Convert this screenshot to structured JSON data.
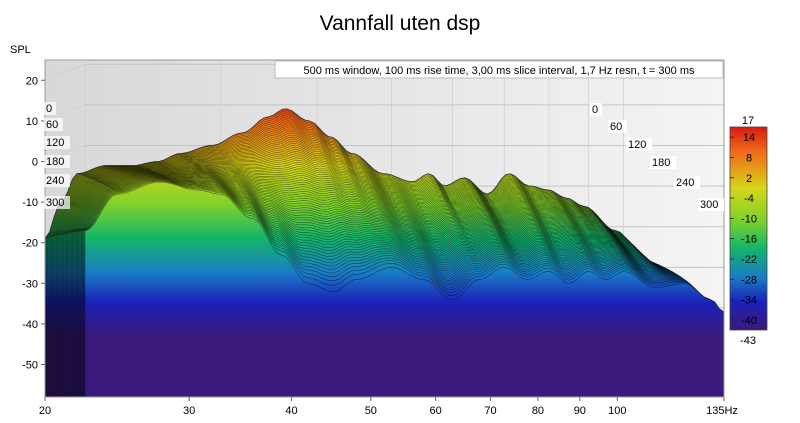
{
  "chart_data": {
    "type": "area",
    "title": "Vannfall uten dsp",
    "ylabel": "SPL",
    "x_unit": "Hz",
    "info": "500 ms window, 100 ms rise time, 3,00 ms slice interval, 1,7 Hz resn, t = 300 ms",
    "x_scale": "log",
    "xlim": [
      20,
      135
    ],
    "ylim": [
      -58,
      25
    ],
    "x_ticks": [
      "20",
      "30",
      "40",
      "50",
      "60",
      "70",
      "80",
      "90",
      "100",
      "135"
    ],
    "x_tick_values": [
      20,
      30,
      40,
      50,
      60,
      70,
      80,
      90,
      100,
      135
    ],
    "y_ticks": [
      "20",
      "10",
      "0",
      "-10",
      "-20",
      "-30",
      "-40",
      "-50"
    ],
    "y_tick_values": [
      20,
      10,
      0,
      -10,
      -20,
      -30,
      -40,
      -50
    ],
    "time_labels_left": [
      "0",
      "60",
      "120",
      "180",
      "240",
      "300"
    ],
    "time_labels_right": [
      "0",
      "60",
      "120",
      "180",
      "240",
      "300"
    ],
    "time_values_ms": [
      0,
      60,
      120,
      180,
      240,
      300
    ],
    "colorbar": {
      "top_label": "17",
      "bottom_label": "-43",
      "ticks": [
        "14",
        "8",
        "2",
        "-4",
        "-10",
        "-16",
        "-22",
        "-28",
        "-34",
        "-40"
      ],
      "tick_values": [
        14,
        8,
        2,
        -4,
        -10,
        -16,
        -22,
        -28,
        -34,
        -40
      ],
      "range": [
        -43,
        17
      ]
    },
    "series": [
      {
        "time_ms": 0,
        "x": [
          20,
          21,
          22,
          24,
          26,
          28,
          30,
          33,
          36,
          39,
          41,
          44,
          47,
          50,
          55,
          60,
          63,
          66,
          70,
          75,
          80,
          85,
          90,
          95,
          100,
          110,
          120,
          130,
          135
        ],
        "y": [
          -19,
          -10,
          -3,
          -1,
          -1,
          0,
          2,
          4,
          7,
          11,
          13,
          10,
          6,
          2,
          -3,
          -5,
          -3,
          -6,
          -4,
          -8,
          -3,
          -6,
          -7,
          -9,
          -11,
          -17,
          -24,
          -33,
          -40
        ]
      },
      {
        "time_ms": 300,
        "x": [
          20,
          22,
          25,
          28,
          30,
          33,
          36,
          39,
          42,
          45,
          50,
          55,
          60,
          65,
          70,
          75,
          80,
          85,
          90,
          95,
          100,
          110,
          120,
          130,
          135
        ],
        "y": [
          -21,
          -12,
          -9,
          -11,
          -12,
          -18,
          -27,
          -34,
          -36,
          -33,
          -30,
          -33,
          -38,
          -33,
          -30,
          -33,
          -31,
          -34,
          -31,
          -33,
          -31,
          -35,
          -34,
          -38,
          -41
        ]
      }
    ]
  }
}
